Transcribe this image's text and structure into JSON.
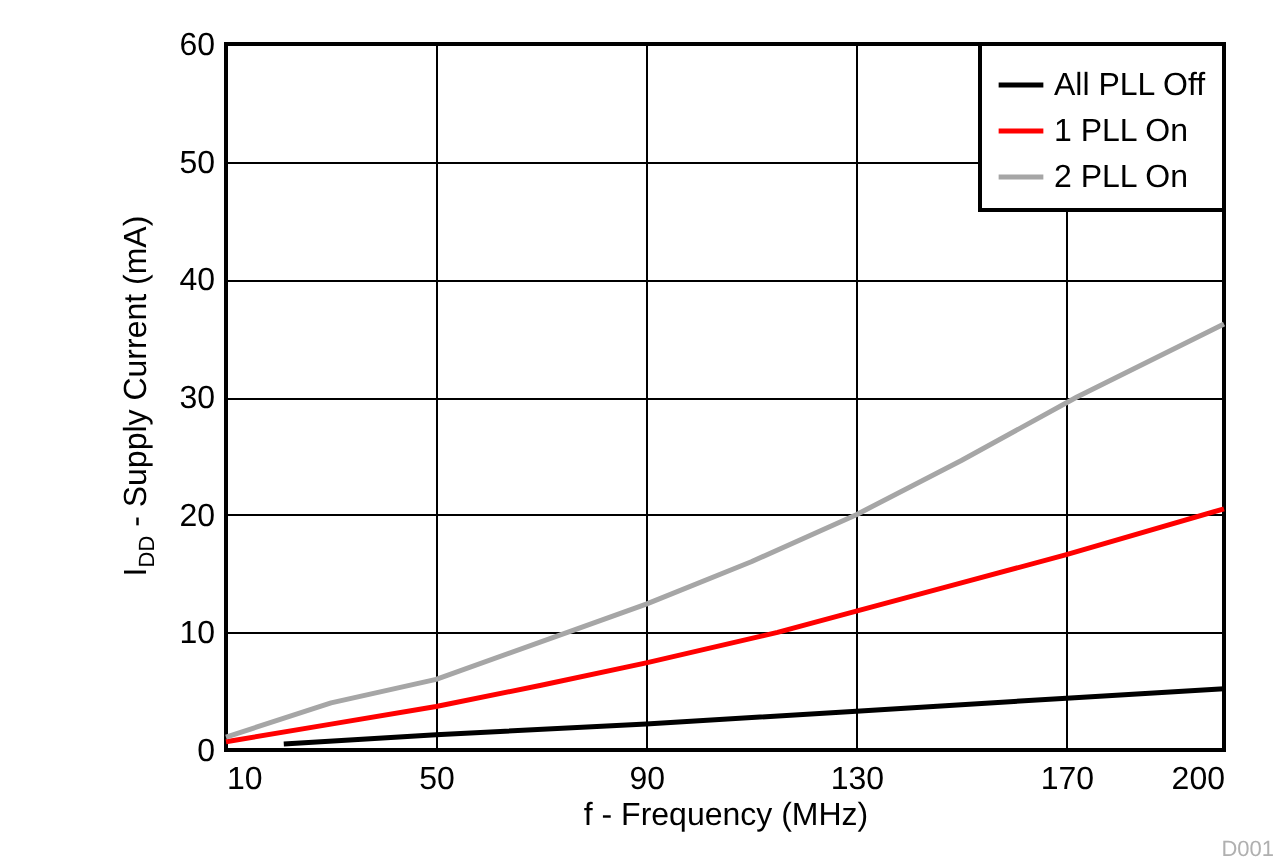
{
  "chart_data": {
    "type": "line",
    "xlabel": "f - Frequency (MHz)",
    "ylabel": "I$_{DD}$ - Supply Current (mA)",
    "xlim": [
      10,
      200
    ],
    "xticks": [
      10,
      50,
      90,
      130,
      170,
      200
    ],
    "ylim": [
      0,
      60
    ],
    "yticks": [
      0,
      10,
      20,
      30,
      40,
      50,
      60
    ],
    "grid": true,
    "legend": "top right",
    "line_style": "solid",
    "marker": "none",
    "annotations": [
      "D001"
    ],
    "series": [
      {
        "name": "All PLL Off",
        "color": "#000000",
        "x": [
          21,
          50,
          90,
          130,
          170,
          200
        ],
        "values": [
          0.5,
          1.3,
          2.2,
          3.3,
          4.4,
          5.2
        ]
      },
      {
        "name": "1 PLL On",
        "color": "#ff0000",
        "x": [
          10,
          30,
          50,
          70,
          90,
          115,
          130,
          150,
          170,
          200
        ],
        "values": [
          0.7,
          2.2,
          3.7,
          5.5,
          7.4,
          10,
          11.8,
          14.2,
          16.6,
          20.5
        ]
      },
      {
        "name": "2 PLL On",
        "color": "#a6a6a6",
        "x": [
          10,
          30,
          50,
          75,
          90,
          110,
          130,
          150,
          172,
          200
        ],
        "values": [
          1.1,
          4,
          6,
          10,
          12.4,
          16,
          20,
          24.6,
          30,
          36.2
        ]
      }
    ]
  }
}
